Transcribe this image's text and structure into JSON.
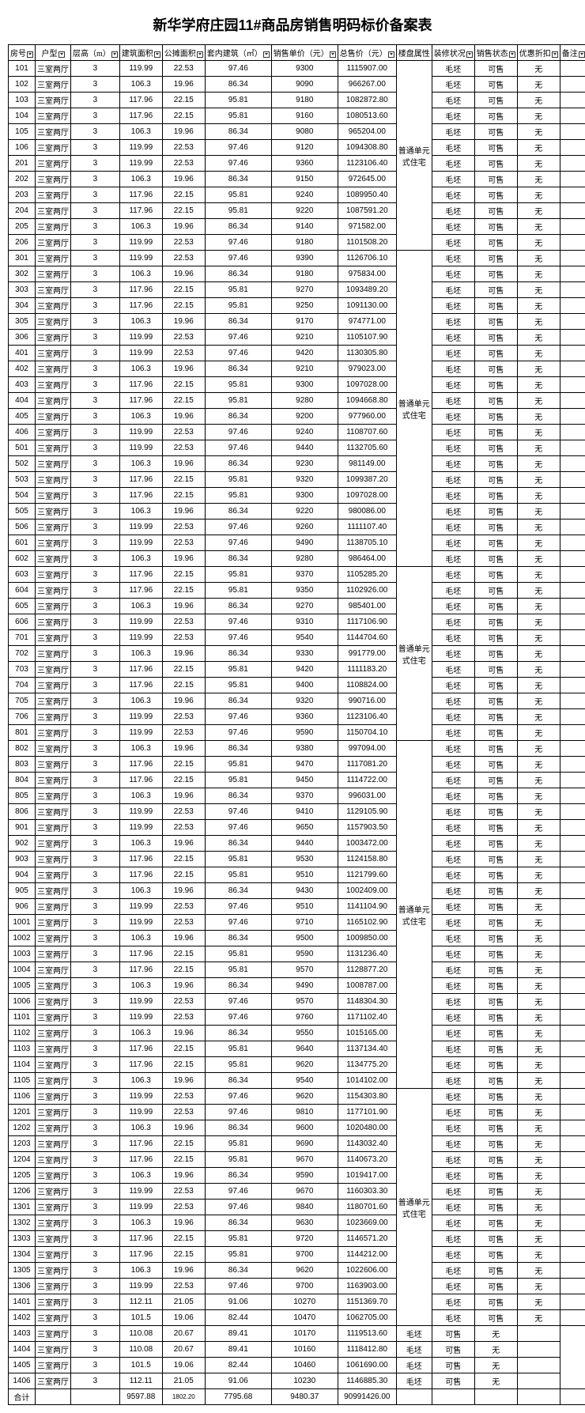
{
  "title": "新华学府庄园11#商品房销售明码标价备案表",
  "headers": {
    "room": "房号",
    "type": "户型",
    "floor": "层高（m）",
    "build": "建筑面积",
    "share": "公摊面积",
    "inner": "套内建筑（㎡）",
    "unit": "销售单价（元）",
    "total": "总售价（元）",
    "attr": "楼盘属性",
    "deco": "装修状况",
    "sale": "销售状态",
    "disc": "优惠折扣",
    "note": "备注"
  },
  "constants": {
    "type": "三室两厅",
    "floor": "3",
    "deco": "毛坯",
    "sale": "可售",
    "disc": "无",
    "attr": "普通单元式住宅"
  },
  "attr_groups": [
    {
      "start": 0,
      "span": 12
    },
    {
      "start": 12,
      "span": 20
    },
    {
      "start": 32,
      "span": 11
    },
    {
      "start": 43,
      "span": 22
    },
    {
      "start": 65,
      "span": 15
    }
  ],
  "rows": [
    {
      "room": "101",
      "build": "119.99",
      "share": "22.53",
      "inner": "97.46",
      "unit": "9300",
      "total": "1115907.00"
    },
    {
      "room": "102",
      "build": "106.3",
      "share": "19.96",
      "inner": "86.34",
      "unit": "9090",
      "total": "966267.00"
    },
    {
      "room": "103",
      "build": "117.96",
      "share": "22.15",
      "inner": "95.81",
      "unit": "9180",
      "total": "1082872.80"
    },
    {
      "room": "104",
      "build": "117.96",
      "share": "22.15",
      "inner": "95.81",
      "unit": "9160",
      "total": "1080513.60"
    },
    {
      "room": "105",
      "build": "106.3",
      "share": "19.96",
      "inner": "86.34",
      "unit": "9080",
      "total": "965204.00"
    },
    {
      "room": "106",
      "build": "119.99",
      "share": "22.53",
      "inner": "97.46",
      "unit": "9120",
      "total": "1094308.80"
    },
    {
      "room": "201",
      "build": "119.99",
      "share": "22.53",
      "inner": "97.46",
      "unit": "9360",
      "total": "1123106.40"
    },
    {
      "room": "202",
      "build": "106.3",
      "share": "19.96",
      "inner": "86.34",
      "unit": "9150",
      "total": "972645.00"
    },
    {
      "room": "203",
      "build": "117.96",
      "share": "22.15",
      "inner": "95.81",
      "unit": "9240",
      "total": "1089950.40"
    },
    {
      "room": "204",
      "build": "117.96",
      "share": "22.15",
      "inner": "95.81",
      "unit": "9220",
      "total": "1087591.20"
    },
    {
      "room": "205",
      "build": "106.3",
      "share": "19.96",
      "inner": "86.34",
      "unit": "9140",
      "total": "971582.00"
    },
    {
      "room": "206",
      "build": "119.99",
      "share": "22.53",
      "inner": "97.46",
      "unit": "9180",
      "total": "1101508.20"
    },
    {
      "room": "301",
      "build": "119.99",
      "share": "22.53",
      "inner": "97.46",
      "unit": "9390",
      "total": "1126706.10"
    },
    {
      "room": "302",
      "build": "106.3",
      "share": "19.96",
      "inner": "86.34",
      "unit": "9180",
      "total": "975834.00"
    },
    {
      "room": "303",
      "build": "117.96",
      "share": "22.15",
      "inner": "95.81",
      "unit": "9270",
      "total": "1093489.20"
    },
    {
      "room": "304",
      "build": "117.96",
      "share": "22.15",
      "inner": "95.81",
      "unit": "9250",
      "total": "1091130.00"
    },
    {
      "room": "305",
      "build": "106.3",
      "share": "19.96",
      "inner": "86.34",
      "unit": "9170",
      "total": "974771.00"
    },
    {
      "room": "306",
      "build": "119.99",
      "share": "22.53",
      "inner": "97.46",
      "unit": "9210",
      "total": "1105107.90"
    },
    {
      "room": "401",
      "build": "119.99",
      "share": "22.53",
      "inner": "97.46",
      "unit": "9420",
      "total": "1130305.80"
    },
    {
      "room": "402",
      "build": "106.3",
      "share": "19.96",
      "inner": "86.34",
      "unit": "9210",
      "total": "979023.00"
    },
    {
      "room": "403",
      "build": "117.96",
      "share": "22.15",
      "inner": "95.81",
      "unit": "9300",
      "total": "1097028.00"
    },
    {
      "room": "404",
      "build": "117.96",
      "share": "22.15",
      "inner": "95.81",
      "unit": "9280",
      "total": "1094668.80"
    },
    {
      "room": "405",
      "build": "106.3",
      "share": "19.96",
      "inner": "86.34",
      "unit": "9200",
      "total": "977960.00"
    },
    {
      "room": "406",
      "build": "119.99",
      "share": "22.53",
      "inner": "97.46",
      "unit": "9240",
      "total": "1108707.60"
    },
    {
      "room": "501",
      "build": "119.99",
      "share": "22.53",
      "inner": "97.46",
      "unit": "9440",
      "total": "1132705.60"
    },
    {
      "room": "502",
      "build": "106.3",
      "share": "19.96",
      "inner": "86.34",
      "unit": "9230",
      "total": "981149.00"
    },
    {
      "room": "503",
      "build": "117.96",
      "share": "22.15",
      "inner": "95.81",
      "unit": "9320",
      "total": "1099387.20"
    },
    {
      "room": "504",
      "build": "117.96",
      "share": "22.15",
      "inner": "95.81",
      "unit": "9300",
      "total": "1097028.00"
    },
    {
      "room": "505",
      "build": "106.3",
      "share": "19.96",
      "inner": "86.34",
      "unit": "9220",
      "total": "980086.00"
    },
    {
      "room": "506",
      "build": "119.99",
      "share": "22.53",
      "inner": "97.46",
      "unit": "9260",
      "total": "1111107.40"
    },
    {
      "room": "601",
      "build": "119.99",
      "share": "22.53",
      "inner": "97.46",
      "unit": "9490",
      "total": "1138705.10"
    },
    {
      "room": "602",
      "build": "106.3",
      "share": "19.96",
      "inner": "86.34",
      "unit": "9280",
      "total": "986464.00"
    },
    {
      "room": "603",
      "build": "117.96",
      "share": "22.15",
      "inner": "95.81",
      "unit": "9370",
      "total": "1105285.20"
    },
    {
      "room": "604",
      "build": "117.96",
      "share": "22.15",
      "inner": "95.81",
      "unit": "9350",
      "total": "1102926.00"
    },
    {
      "room": "605",
      "build": "106.3",
      "share": "19.96",
      "inner": "86.34",
      "unit": "9270",
      "total": "985401.00"
    },
    {
      "room": "606",
      "build": "119.99",
      "share": "22.53",
      "inner": "97.46",
      "unit": "9310",
      "total": "1117106.90"
    },
    {
      "room": "701",
      "build": "119.99",
      "share": "22.53",
      "inner": "97.46",
      "unit": "9540",
      "total": "1144704.60"
    },
    {
      "room": "702",
      "build": "106.3",
      "share": "19.96",
      "inner": "86.34",
      "unit": "9330",
      "total": "991779.00"
    },
    {
      "room": "703",
      "build": "117.96",
      "share": "22.15",
      "inner": "95.81",
      "unit": "9420",
      "total": "1111183.20"
    },
    {
      "room": "704",
      "build": "117.96",
      "share": "22.15",
      "inner": "95.81",
      "unit": "9400",
      "total": "1108824.00"
    },
    {
      "room": "705",
      "build": "106.3",
      "share": "19.96",
      "inner": "86.34",
      "unit": "9320",
      "total": "990716.00"
    },
    {
      "room": "706",
      "build": "119.99",
      "share": "22.53",
      "inner": "97.46",
      "unit": "9360",
      "total": "1123106.40"
    },
    {
      "room": "801",
      "build": "119.99",
      "share": "22.53",
      "inner": "97.46",
      "unit": "9590",
      "total": "1150704.10"
    },
    {
      "room": "802",
      "build": "106.3",
      "share": "19.96",
      "inner": "86.34",
      "unit": "9380",
      "total": "997094.00"
    },
    {
      "room": "803",
      "build": "117.96",
      "share": "22.15",
      "inner": "95.81",
      "unit": "9470",
      "total": "1117081.20"
    },
    {
      "room": "804",
      "build": "117.96",
      "share": "22.15",
      "inner": "95.81",
      "unit": "9450",
      "total": "1114722.00"
    },
    {
      "room": "805",
      "build": "106.3",
      "share": "19.96",
      "inner": "86.34",
      "unit": "9370",
      "total": "996031.00"
    },
    {
      "room": "806",
      "build": "119.99",
      "share": "22.53",
      "inner": "97.46",
      "unit": "9410",
      "total": "1129105.90"
    },
    {
      "room": "901",
      "build": "119.99",
      "share": "22.53",
      "inner": "97.46",
      "unit": "9650",
      "total": "1157903.50"
    },
    {
      "room": "902",
      "build": "106.3",
      "share": "19.96",
      "inner": "86.34",
      "unit": "9440",
      "total": "1003472.00"
    },
    {
      "room": "903",
      "build": "117.96",
      "share": "22.15",
      "inner": "95.81",
      "unit": "9530",
      "total": "1124158.80"
    },
    {
      "room": "904",
      "build": "117.96",
      "share": "22.15",
      "inner": "95.81",
      "unit": "9510",
      "total": "1121799.60"
    },
    {
      "room": "905",
      "build": "106.3",
      "share": "19.96",
      "inner": "86.34",
      "unit": "9430",
      "total": "1002409.00"
    },
    {
      "room": "906",
      "build": "119.99",
      "share": "22.53",
      "inner": "97.46",
      "unit": "9510",
      "total": "1141104.90"
    },
    {
      "room": "1001",
      "build": "119.99",
      "share": "22.53",
      "inner": "97.46",
      "unit": "9710",
      "total": "1165102.90"
    },
    {
      "room": "1002",
      "build": "106.3",
      "share": "19.96",
      "inner": "86.34",
      "unit": "9500",
      "total": "1009850.00"
    },
    {
      "room": "1003",
      "build": "117.96",
      "share": "22.15",
      "inner": "95.81",
      "unit": "9590",
      "total": "1131236.40"
    },
    {
      "room": "1004",
      "build": "117.96",
      "share": "22.15",
      "inner": "95.81",
      "unit": "9570",
      "total": "1128877.20"
    },
    {
      "room": "1005",
      "build": "106.3",
      "share": "19.96",
      "inner": "86.34",
      "unit": "9490",
      "total": "1008787.00"
    },
    {
      "room": "1006",
      "build": "119.99",
      "share": "22.53",
      "inner": "97.46",
      "unit": "9570",
      "total": "1148304.30"
    },
    {
      "room": "1101",
      "build": "119.99",
      "share": "22.53",
      "inner": "97.46",
      "unit": "9760",
      "total": "1171102.40"
    },
    {
      "room": "1102",
      "build": "106.3",
      "share": "19.96",
      "inner": "86.34",
      "unit": "9550",
      "total": "1015165.00"
    },
    {
      "room": "1103",
      "build": "117.96",
      "share": "22.15",
      "inner": "95.81",
      "unit": "9640",
      "total": "1137134.40"
    },
    {
      "room": "1104",
      "build": "117.96",
      "share": "22.15",
      "inner": "95.81",
      "unit": "9620",
      "total": "1134775.20"
    },
    {
      "room": "1105",
      "build": "106.3",
      "share": "19.96",
      "inner": "86.34",
      "unit": "9540",
      "total": "1014102.00"
    },
    {
      "room": "1106",
      "build": "119.99",
      "share": "22.53",
      "inner": "97.46",
      "unit": "9620",
      "total": "1154303.80"
    },
    {
      "room": "1201",
      "build": "119.99",
      "share": "22.53",
      "inner": "97.46",
      "unit": "9810",
      "total": "1177101.90"
    },
    {
      "room": "1202",
      "build": "106.3",
      "share": "19.96",
      "inner": "86.34",
      "unit": "9600",
      "total": "1020480.00"
    },
    {
      "room": "1203",
      "build": "117.96",
      "share": "22.15",
      "inner": "95.81",
      "unit": "9690",
      "total": "1143032.40"
    },
    {
      "room": "1204",
      "build": "117.96",
      "share": "22.15",
      "inner": "95.81",
      "unit": "9670",
      "total": "1140673.20"
    },
    {
      "room": "1205",
      "build": "106.3",
      "share": "19.96",
      "inner": "86.34",
      "unit": "9590",
      "total": "1019417.00"
    },
    {
      "room": "1206",
      "build": "119.99",
      "share": "22.53",
      "inner": "97.46",
      "unit": "9670",
      "total": "1160303.30"
    },
    {
      "room": "1301",
      "build": "119.99",
      "share": "22.53",
      "inner": "97.46",
      "unit": "9840",
      "total": "1180701.60"
    },
    {
      "room": "1302",
      "build": "106.3",
      "share": "19.96",
      "inner": "86.34",
      "unit": "9630",
      "total": "1023669.00"
    },
    {
      "room": "1303",
      "build": "117.96",
      "share": "22.15",
      "inner": "95.81",
      "unit": "9720",
      "total": "1146571.20"
    },
    {
      "room": "1304",
      "build": "117.96",
      "share": "22.15",
      "inner": "95.81",
      "unit": "9700",
      "total": "1144212.00"
    },
    {
      "room": "1305",
      "build": "106.3",
      "share": "19.96",
      "inner": "86.34",
      "unit": "9620",
      "total": "1022606.00"
    },
    {
      "room": "1306",
      "build": "119.99",
      "share": "22.53",
      "inner": "97.46",
      "unit": "9700",
      "total": "1163903.00"
    },
    {
      "room": "1401",
      "build": "112.11",
      "share": "21.05",
      "inner": "91.06",
      "unit": "10270",
      "total": "1151369.70"
    },
    {
      "room": "1402",
      "build": "101.5",
      "share": "19.06",
      "inner": "82.44",
      "unit": "10470",
      "total": "1062705.00"
    },
    {
      "room": "1403",
      "build": "110.08",
      "share": "20.67",
      "inner": "89.41",
      "unit": "10170",
      "total": "1119513.60"
    },
    {
      "room": "1404",
      "build": "110.08",
      "share": "20.67",
      "inner": "89.41",
      "unit": "10160",
      "total": "1118412.80"
    },
    {
      "room": "1405",
      "build": "101.5",
      "share": "19.06",
      "inner": "82.44",
      "unit": "10460",
      "total": "1061690.00"
    },
    {
      "room": "1406",
      "build": "112.11",
      "share": "21.05",
      "inner": "91.06",
      "unit": "10230",
      "total": "1146885.30"
    }
  ],
  "totals": {
    "label": "合计",
    "build": "9597.88",
    "share": "1802.20",
    "inner": "7795.68",
    "unit": "9480.37",
    "total": "90991426.00"
  }
}
